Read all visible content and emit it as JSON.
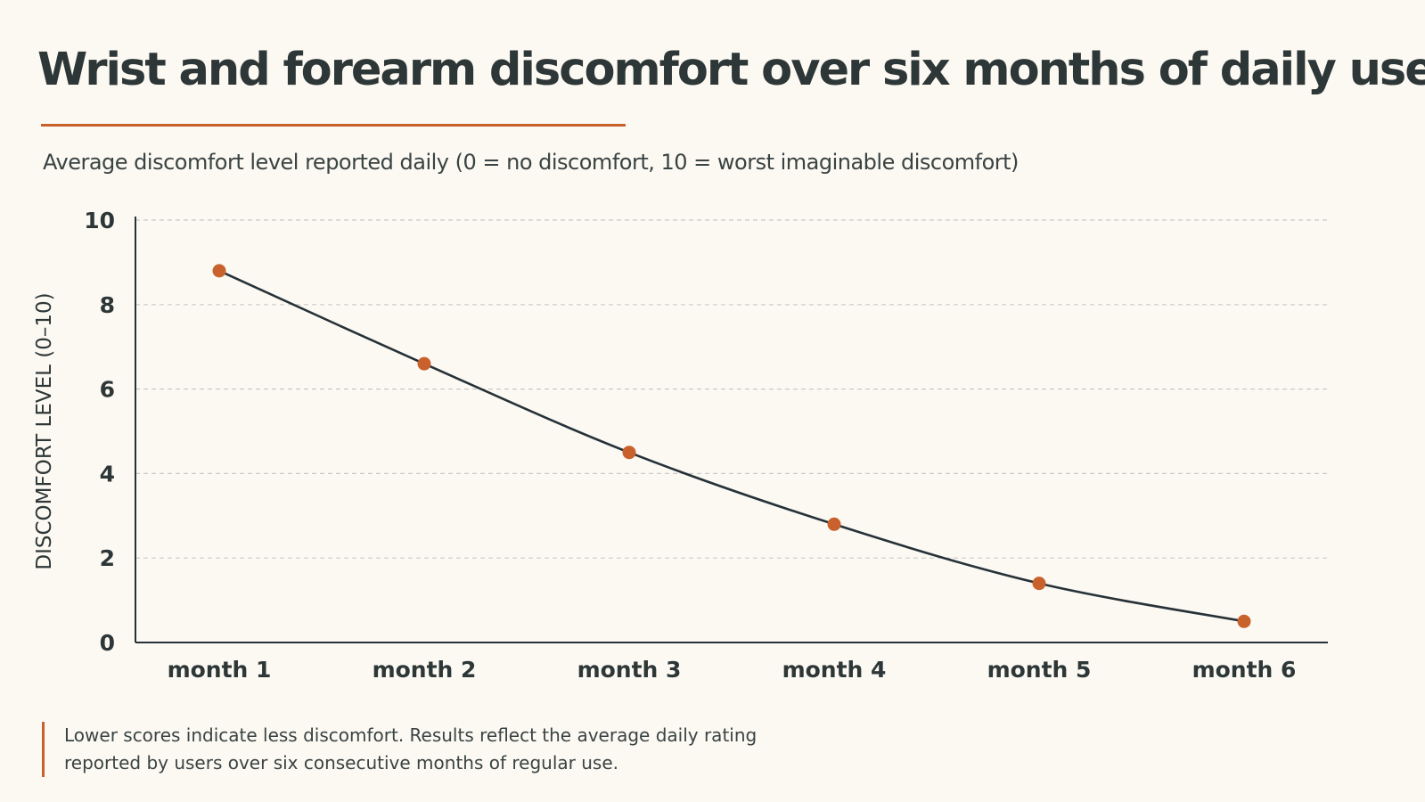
{
  "header": {
    "title": "Wrist and forearm discomfort over six months of daily use",
    "subtitle": "Average discomfort level reported daily (0 = no discomfort, 10 = worst imaginable discomfort)"
  },
  "footnote": {
    "line1": "Lower scores indicate less discomfort. Results reflect the average daily rating",
    "line2": "reported by users over six consecutive months of regular use."
  },
  "colors": {
    "background": "#fcf9f3",
    "accent": "#c8612b",
    "line": "#263238",
    "text": "#2e3737",
    "grid": "#c9c9c9"
  },
  "chart_data": {
    "type": "line",
    "title": "Wrist and forearm discomfort over six months of daily use",
    "subtitle": "Average discomfort level reported daily (0 = no discomfort, 10 = worst imaginable discomfort)",
    "xlabel": "",
    "ylabel": "DISCOMFORT LEVEL (0–10)",
    "categories": [
      "month 1",
      "month 2",
      "month 3",
      "month 4",
      "month 5",
      "month 6"
    ],
    "series": [
      {
        "values": [
          8.8,
          6.6,
          4.5,
          2.8,
          1.4,
          0.5
        ]
      }
    ],
    "ylim": [
      0,
      10
    ],
    "yticks": [
      0,
      2,
      4,
      6,
      8,
      10
    ],
    "grid": true,
    "grid_style": "dashed horizontal",
    "legend": "none"
  }
}
